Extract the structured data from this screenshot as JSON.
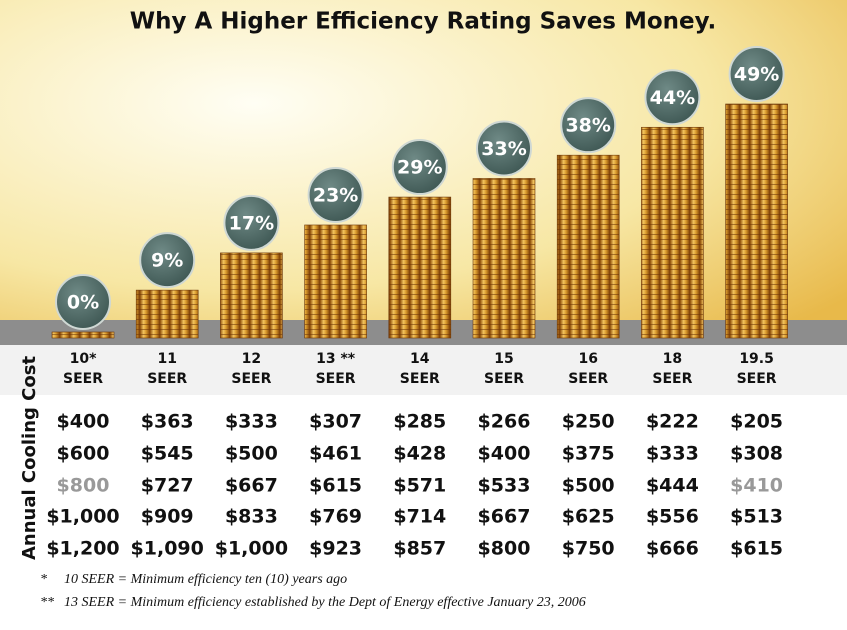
{
  "chart_data": {
    "type": "bar",
    "title": "Why A Higher Efficiency Rating Saves Money.",
    "categories": [
      "10*",
      "11",
      "12",
      "13 **",
      "14",
      "15",
      "16",
      "18",
      "19.5"
    ],
    "category_unit": "SEER",
    "values": [
      0,
      9,
      17,
      23,
      29,
      33,
      38,
      44,
      49
    ],
    "value_labels": [
      "0%",
      "9%",
      "17%",
      "23%",
      "29%",
      "33%",
      "38%",
      "44%",
      "49%"
    ],
    "color": "#d08a20"
  },
  "table": {
    "row_header": "Annual Cooling Cost",
    "rows": [
      [
        "$400",
        "$363",
        "$333",
        "$307",
        "$285",
        "$266",
        "$250",
        "$222",
        "$205"
      ],
      [
        "$600",
        "$545",
        "$500",
        "$461",
        "$428",
        "$400",
        "$375",
        "$333",
        "$308"
      ],
      [
        "$800",
        "$727",
        "$667",
        "$615",
        "$571",
        "$533",
        "$500",
        "$444",
        "$410"
      ],
      [
        "$1,000",
        "$909",
        "$833",
        "$769",
        "$714",
        "$667",
        "$625",
        "$556",
        "$513"
      ],
      [
        "$1,200",
        "$1,090",
        "$1,000",
        "$923",
        "$857",
        "$800",
        "$750",
        "$666",
        "$615"
      ]
    ]
  },
  "footnotes": [
    {
      "mark": "*",
      "text": "10 SEER = Minimum efficiency ten (10) years ago"
    },
    {
      "mark": "**",
      "text": "13 SEER = Minimum efficiency established by the Dept of Energy effective January 23, 2006"
    }
  ]
}
